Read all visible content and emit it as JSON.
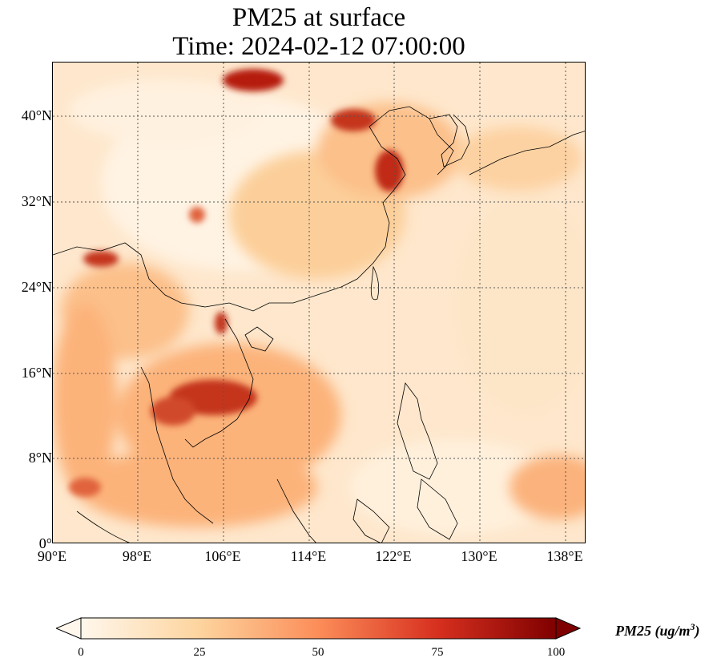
{
  "title": {
    "line1": "PM25 at surface",
    "line2": "Time: 2024-02-12 07:00:00"
  },
  "map": {
    "lon_range": [
      90,
      140
    ],
    "lat_range": [
      0,
      45
    ],
    "gridlines": true,
    "variable": "PM25",
    "colormap": "OrRd"
  },
  "axes": {
    "x_ticks": [
      "90°E",
      "98°E",
      "106°E",
      "114°E",
      "122°E",
      "130°E",
      "138°E"
    ],
    "y_ticks": [
      "40°N",
      "32°N",
      "24°N",
      "16°N",
      "8°N",
      "0°"
    ]
  },
  "colorbar": {
    "ticks": [
      "0",
      "25",
      "50",
      "75",
      "100"
    ],
    "label_main": "PM25 (ug/m",
    "label_sup": "3",
    "label_end": ")",
    "colors": [
      "#fff7ec",
      "#fdd49e",
      "#fc8d59",
      "#d7301f",
      "#7f0000"
    ]
  }
}
